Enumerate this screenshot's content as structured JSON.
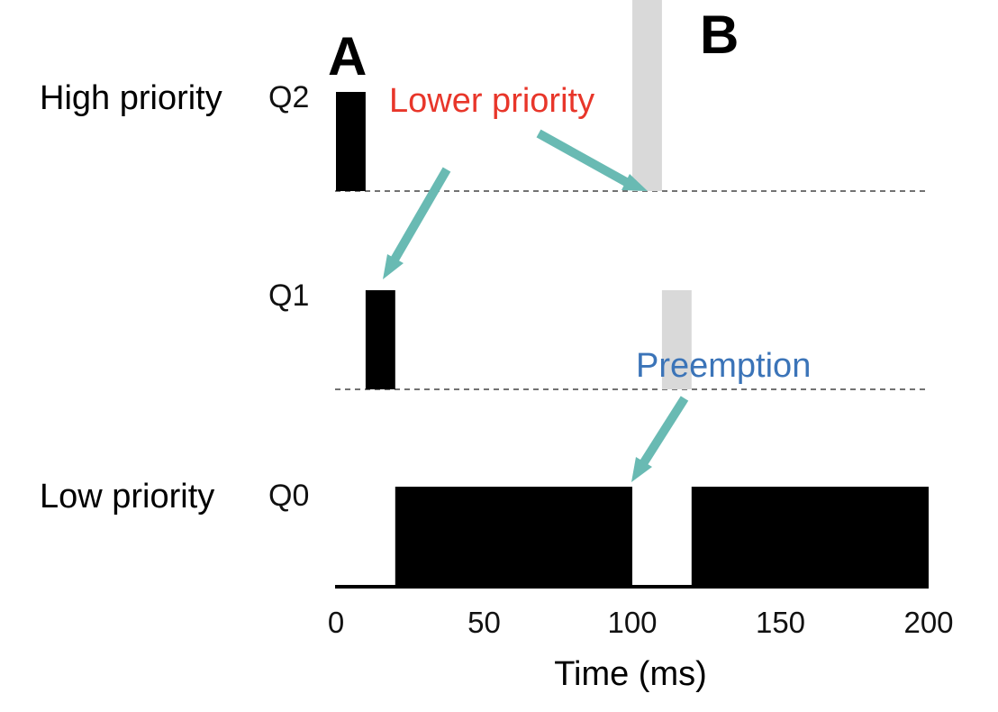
{
  "row_labels": {
    "high": "High priority",
    "low": "Low priority"
  },
  "markers": {
    "a": "A",
    "b": "B"
  },
  "annotations": {
    "lower_priority": "Lower priority",
    "preemption": "Preemption"
  },
  "colors": {
    "job_a": "#000000",
    "job_b": "#d9d9d9",
    "arrow": "#69bab3",
    "lower_priority_text": "#e8362a",
    "preemption_text": "#3b74b8",
    "axis": "#000000",
    "divider": "#444444"
  },
  "chart_data": {
    "type": "bar",
    "xlabel": "Time (ms)",
    "ylabel": "",
    "xlim": [
      0,
      200
    ],
    "xticks": [
      "0",
      "50",
      "100",
      "150",
      "200"
    ],
    "queues": [
      "Q2",
      "Q1",
      "Q0"
    ],
    "series": [
      {
        "name": "A",
        "segments": [
          {
            "queue": "Q2",
            "start": 0,
            "end": 10
          },
          {
            "queue": "Q1",
            "start": 10,
            "end": 20
          },
          {
            "queue": "Q0",
            "start": 20,
            "end": 100
          },
          {
            "queue": "Q0",
            "start": 120,
            "end": 200
          }
        ]
      },
      {
        "name": "B",
        "segments": [
          {
            "queue": "Q2",
            "start": 100,
            "end": 110
          },
          {
            "queue": "Q1",
            "start": 110,
            "end": 120
          }
        ]
      }
    ],
    "grid": false
  }
}
